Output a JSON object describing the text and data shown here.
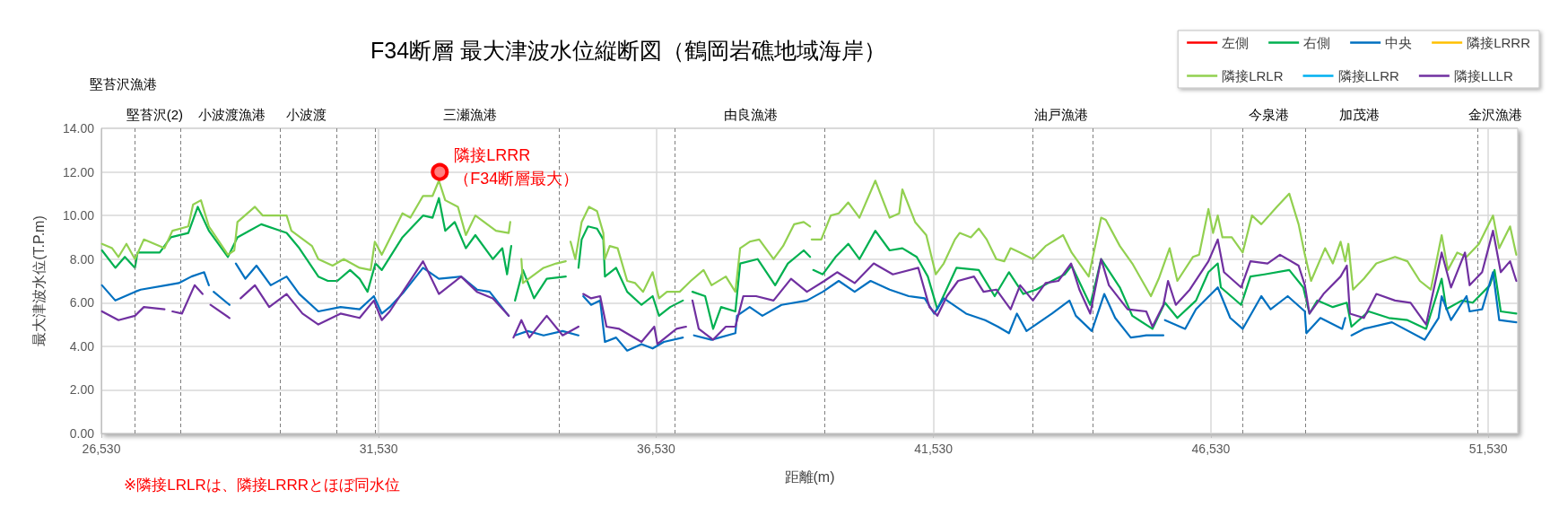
{
  "chart_data": {
    "type": "line",
    "title": "F34断層 最大津波水位縦断図（鶴岡岩礁地域海岸）",
    "xlabel": "距離(m)",
    "ylabel": "最大津波水位(T.P.m)",
    "xlim": [
      26530,
      52060
    ],
    "xticks": [
      {
        "value": 26530,
        "label": "26,530"
      },
      {
        "value": 31530,
        "label": "31,530"
      },
      {
        "value": 36530,
        "label": "36,530"
      },
      {
        "value": 41530,
        "label": "41,530"
      },
      {
        "value": 46530,
        "label": "46,530"
      },
      {
        "value": 51530,
        "label": "51,530"
      }
    ],
    "ylim": [
      0,
      14
    ],
    "yticks": [
      {
        "value": 0,
        "label": "0.00"
      },
      {
        "value": 2,
        "label": "2.00"
      },
      {
        "value": 4,
        "label": "4.00"
      },
      {
        "value": 6,
        "label": "6.00"
      },
      {
        "value": 8,
        "label": "8.00"
      },
      {
        "value": 10,
        "label": "10.00"
      },
      {
        "value": 12,
        "label": "12.00"
      },
      {
        "value": 14,
        "label": "14.00"
      }
    ],
    "grid": true,
    "legend": "top right",
    "marker": "none",
    "ref_lines": [
      {
        "axis": "x",
        "value": 27139,
        "label": null,
        "line_style": "dashed",
        "color": "#7f7f7f"
      },
      {
        "axis": "x",
        "value": 27951,
        "label": null,
        "line_style": "dashed",
        "color": "#7f7f7f"
      },
      {
        "axis": "x",
        "value": 29754,
        "label": null,
        "line_style": "dashed",
        "color": "#7f7f7f"
      },
      {
        "axis": "x",
        "value": 30767,
        "label": null,
        "line_style": "dashed",
        "color": "#7f7f7f"
      },
      {
        "axis": "x",
        "value": 31466,
        "label": null,
        "line_style": "dashed",
        "color": "#7f7f7f"
      },
      {
        "axis": "x",
        "value": 34785,
        "label": null,
        "line_style": "dashed",
        "color": "#7f7f7f"
      },
      {
        "axis": "x",
        "value": 36863,
        "label": null,
        "line_style": "dashed",
        "color": "#7f7f7f"
      },
      {
        "axis": "x",
        "value": 39559,
        "label": null,
        "line_style": "dashed",
        "color": "#7f7f7f"
      },
      {
        "axis": "x",
        "value": 43314,
        "label": null,
        "line_style": "dashed",
        "color": "#7f7f7f"
      },
      {
        "axis": "x",
        "value": 44395,
        "label": null,
        "line_style": "dashed",
        "color": "#7f7f7f"
      },
      {
        "axis": "x",
        "value": 47102,
        "label": null,
        "line_style": "dashed",
        "color": "#7f7f7f"
      },
      {
        "axis": "x",
        "value": 48229,
        "label": null,
        "line_style": "dashed",
        "color": "#7f7f7f"
      },
      {
        "axis": "x",
        "value": 51344,
        "label": null,
        "line_style": "dashed",
        "color": "#7f7f7f"
      }
    ],
    "annotations": [
      "堅苔沢漁港",
      "堅苔沢(2)",
      "小波渡漁港",
      "小波渡",
      "三瀬漁港",
      "由良漁港",
      "油戸漁港",
      "今泉港",
      "加茂港",
      "金沢漁港",
      {
        "text": "隣接LRRR\n（F34断層最大）",
        "x": 32630,
        "y": 12.0
      },
      "※隣接LRLRは、隣接LRRRとほぼ同水位"
    ],
    "series": [
      {
        "name": "左側",
        "color": "#ff0000"
      },
      {
        "name": "右側",
        "color": "#00b050",
        "x": [
          26541,
          26782,
          26953,
          27136,
          27182,
          27582,
          27782,
          28097,
          28268,
          28468,
          28811,
          28983,
          29412,
          29869,
          30098,
          30441,
          30613,
          30784,
          31013,
          31185,
          31328,
          31470,
          31585,
          31957,
          32328,
          32500,
          32614,
          32728,
          32900,
          33100,
          33271,
          33586,
          33757,
          33843,
          33918,
          33950,
          33986,
          34129,
          34329,
          34558,
          34901,
          34950,
          35130,
          35187,
          35301,
          35464,
          35578,
          35607,
          35808,
          36008,
          36266,
          36467,
          36582,
          36783,
          37012,
          37100,
          37184,
          37413,
          37557,
          37700,
          37958,
          38044,
          38359,
          38675,
          38904,
          39190,
          39305,
          39330,
          39362,
          39534,
          39764,
          39993,
          40194,
          40481,
          40739,
          40968,
          41226,
          41427,
          41599,
          41943,
          42345,
          42632,
          42890,
          43148,
          43378,
          43665,
          43894,
          44019,
          44355,
          44551,
          44888,
          45112,
          45476,
          45701,
          45925,
          46261,
          46485,
          46653,
          46709,
          47074,
          47242,
          47494,
          47942,
          48194,
          48306,
          48447,
          48727,
          48979,
          49063,
          49371,
          49736,
          50072,
          50409,
          50689,
          50773,
          51053,
          51249,
          51558,
          51642,
          51754,
          52034
        ],
        "values": [
          8.4,
          7.6,
          8.1,
          7.6,
          8.3,
          8.3,
          9.0,
          9.2,
          10.4,
          9.3,
          8.1,
          9.0,
          9.6,
          9.2,
          8.5,
          7.2,
          7.0,
          7.0,
          7.5,
          7.1,
          6.5,
          7.8,
          7.5,
          9.0,
          10.0,
          9.9,
          10.8,
          9.3,
          9.7,
          8.5,
          9.1,
          8.0,
          8.5,
          7.3,
          8.6,
          null,
          6.1,
          7.5,
          6.2,
          7.1,
          7.2,
          null,
          7.6,
          8.9,
          9.5,
          9.4,
          8.9,
          7.2,
          7.6,
          6.5,
          5.9,
          6.3,
          5.4,
          5.8,
          6.1,
          null,
          6.5,
          6.3,
          4.8,
          5.8,
          5.6,
          7.8,
          8.0,
          6.8,
          7.8,
          8.4,
          8.1,
          null,
          7.5,
          7.3,
          8.1,
          8.7,
          8.0,
          9.3,
          8.4,
          8.5,
          8.1,
          7.2,
          5.7,
          7.6,
          7.5,
          6.3,
          7.4,
          6.4,
          6.6,
          7.0,
          7.3,
          7.7,
          5.9,
          8.0,
          6.7,
          5.4,
          4.8,
          6.0,
          5.3,
          6.1,
          7.4,
          7.8,
          6.7,
          5.9,
          7.2,
          7.3,
          7.5,
          6.7,
          5.5,
          6.1,
          5.8,
          6.0,
          4.9,
          5.6,
          5.3,
          5.2,
          4.8,
          7.1,
          5.7,
          6.1,
          6.0,
          6.8,
          7.5,
          5.6,
          5.5
        ]
      },
      {
        "name": "中央",
        "color": "#0070c0",
        "x": [
          26541,
          26782,
          27136,
          27239,
          27696,
          27925,
          28154,
          28383,
          28468,
          28500,
          28554,
          28840,
          28900,
          28954,
          29126,
          29326,
          29583,
          29869,
          30098,
          30441,
          30841,
          31185,
          31442,
          31585,
          31728,
          31985,
          32328,
          32614,
          33014,
          33300,
          33529,
          33872,
          33950,
          33986,
          34215,
          34501,
          34844,
          35130,
          35160,
          35216,
          35358,
          35521,
          35607,
          35808,
          36008,
          36266,
          36467,
          36668,
          37012,
          37100,
          37212,
          37528,
          37958,
          37987,
          38216,
          38445,
          38789,
          39248,
          39534,
          39821,
          40108,
          40395,
          40739,
          41083,
          41370,
          41542,
          41714,
          42116,
          42460,
          42690,
          42890,
          43033,
          43206,
          43435,
          43665,
          43980,
          44095,
          44383,
          44607,
          44804,
          45084,
          45364,
          45673,
          45690,
          45701,
          46065,
          46261,
          46653,
          46878,
          47102,
          47438,
          47606,
          47914,
          48223,
          48251,
          48503,
          48895,
          48951,
          49000,
          49063,
          49287,
          49792,
          50381,
          50633,
          50689,
          50857,
          51137,
          51193,
          51418,
          51614,
          51726,
          52034
        ],
        "values": [
          6.8,
          6.1,
          6.5,
          6.6,
          6.8,
          6.9,
          7.2,
          7.4,
          6.8,
          null,
          6.5,
          5.9,
          null,
          7.8,
          7.1,
          7.7,
          6.8,
          7.2,
          6.4,
          5.6,
          5.8,
          5.7,
          6.3,
          5.5,
          5.8,
          6.5,
          7.6,
          7.1,
          7.2,
          6.6,
          6.5,
          5.4,
          null,
          4.5,
          4.7,
          4.5,
          4.7,
          4.5,
          null,
          6.3,
          5.9,
          6.1,
          4.2,
          4.4,
          3.8,
          4.1,
          3.9,
          4.2,
          4.4,
          null,
          4.5,
          4.3,
          4.6,
          5.4,
          5.8,
          5.4,
          5.9,
          6.1,
          6.5,
          7.0,
          6.5,
          7.0,
          6.6,
          6.3,
          6.2,
          5.5,
          6.2,
          5.5,
          5.2,
          4.9,
          4.6,
          5.5,
          4.7,
          5.1,
          5.5,
          6.1,
          5.4,
          4.7,
          6.4,
          5.3,
          4.4,
          4.5,
          4.5,
          null,
          5.2,
          4.8,
          5.7,
          6.7,
          5.3,
          4.8,
          6.3,
          5.7,
          6.3,
          5.6,
          4.6,
          5.3,
          4.8,
          5.3,
          null,
          4.5,
          4.8,
          5.1,
          4.3,
          5.3,
          6.3,
          5.2,
          6.3,
          5.6,
          5.7,
          7.4,
          5.2,
          5.1
        ]
      },
      {
        "name": "隣接LRRR",
        "color": "#ffc000"
      },
      {
        "name": "隣接LRLR",
        "color": "#92d050",
        "x": [
          26541,
          26724,
          26839,
          26982,
          27136,
          27296,
          27668,
          27811,
          28097,
          28183,
          28325,
          28468,
          28811,
          28926,
          28983,
          29298,
          29440,
          29869,
          29955,
          30327,
          30441,
          30698,
          30899,
          31185,
          31385,
          31459,
          31585,
          31957,
          32100,
          32328,
          32500,
          32614,
          32728,
          32957,
          33100,
          33271,
          33643,
          33872,
          33900,
          33990,
          34101,
          34129,
          34501,
          34730,
          34901,
          34950,
          34987,
          35073,
          35187,
          35320,
          35464,
          35578,
          35607,
          35693,
          35836,
          36008,
          36152,
          36295,
          36467,
          36582,
          36725,
          36954,
          37155,
          37384,
          37528,
          37786,
          37958,
          38044,
          38216,
          38388,
          38646,
          38818,
          39018,
          39190,
          39305,
          39320,
          39333,
          39506,
          39678,
          39821,
          39993,
          40194,
          40481,
          40739,
          40911,
          40968,
          41198,
          41399,
          41571,
          41714,
          41915,
          42001,
          42202,
          42345,
          42489,
          42661,
          42804,
          42919,
          43091,
          43321,
          43550,
          43865,
          44019,
          44327,
          44551,
          44635,
          44888,
          45112,
          45448,
          45589,
          45785,
          45925,
          46205,
          46317,
          46485,
          46569,
          46653,
          46737,
          46906,
          47102,
          47270,
          47438,
          47718,
          47942,
          48110,
          48223,
          48335,
          48587,
          48727,
          48867,
          48951,
          49007,
          49091,
          49287,
          49512,
          49848,
          50072,
          50296,
          50493,
          50689,
          50801,
          50969,
          51137,
          51362,
          51614,
          51726,
          51922,
          52034
        ],
        "values": [
          8.7,
          8.5,
          8.1,
          8.7,
          8.0,
          8.9,
          8.5,
          9.3,
          9.5,
          10.5,
          10.7,
          9.5,
          8.2,
          8.4,
          9.7,
          10.4,
          10.0,
          10.0,
          9.3,
          8.6,
          8.0,
          7.7,
          8.0,
          7.6,
          7.5,
          8.8,
          8.2,
          10.1,
          9.9,
          10.9,
          10.9,
          11.6,
          10.7,
          10.4,
          9.1,
          10.0,
          9.3,
          9.2,
          9.7,
          null,
          8.0,
          6.9,
          7.6,
          7.8,
          7.9,
          null,
          8.8,
          8.0,
          9.7,
          10.4,
          10.2,
          9.2,
          8.0,
          8.6,
          8.5,
          7.0,
          6.9,
          6.5,
          7.4,
          6.2,
          6.5,
          6.5,
          7.0,
          7.5,
          6.8,
          7.2,
          6.5,
          8.5,
          8.8,
          8.9,
          8.0,
          8.6,
          9.6,
          9.7,
          9.5,
          null,
          8.9,
          8.9,
          10.0,
          10.1,
          10.6,
          9.9,
          11.6,
          9.9,
          10.1,
          11.2,
          9.7,
          9.1,
          7.3,
          7.8,
          8.9,
          9.2,
          9.0,
          9.4,
          8.9,
          8.0,
          7.9,
          8.5,
          8.3,
          8.0,
          8.6,
          9.1,
          8.3,
          7.2,
          9.9,
          9.8,
          8.6,
          7.8,
          6.3,
          7.1,
          8.5,
          7.0,
          8.1,
          8.2,
          10.3,
          9.2,
          10.0,
          9.0,
          9.0,
          8.3,
          10.0,
          9.6,
          10.4,
          11.0,
          9.6,
          8.2,
          7.0,
          8.5,
          7.8,
          8.8,
          7.9,
          8.7,
          6.6,
          7.1,
          7.8,
          8.1,
          7.9,
          7.0,
          6.6,
          9.1,
          7.5,
          8.3,
          8.1,
          8.7,
          10.0,
          8.5,
          9.5,
          8.2
        ]
      },
      {
        "name": "隣接LLRR",
        "color": "#00b0f0"
      },
      {
        "name": "隣接LLLR",
        "color": "#7030a0",
        "x": [
          26541,
          26839,
          27136,
          27296,
          27668,
          27750,
          27811,
          27982,
          28211,
          28354,
          28420,
          28497,
          28840,
          28900,
          29040,
          29298,
          29555,
          29869,
          30155,
          30441,
          30841,
          31185,
          31442,
          31585,
          31728,
          32328,
          32614,
          33014,
          33300,
          33586,
          33872,
          33930,
          33958,
          34101,
          34244,
          34558,
          34844,
          35130,
          35160,
          35216,
          35358,
          35521,
          35635,
          35865,
          36266,
          36496,
          36553,
          36897,
          37069,
          37120,
          37184,
          37298,
          37557,
          37786,
          37958,
          38101,
          38331,
          38646,
          38961,
          39248,
          39563,
          39793,
          40108,
          40452,
          40797,
          41255,
          41456,
          41599,
          41772,
          41972,
          42259,
          42431,
          42661,
          42919,
          43091,
          43321,
          43550,
          43780,
          44009,
          44159,
          44355,
          44551,
          44691,
          45028,
          45364,
          45476,
          45673,
          45757,
          45897,
          46149,
          46485,
          46653,
          46765,
          47074,
          47242,
          47550,
          47774,
          48110,
          48223,
          48306,
          48559,
          48867,
          48979,
          49035,
          49287,
          49512,
          49848,
          50128,
          50409,
          50689,
          50857,
          51109,
          51193,
          51418,
          51614,
          51754,
          51922,
          52034
        ],
        "values": [
          5.6,
          5.2,
          5.4,
          5.8,
          5.7,
          null,
          5.6,
          5.5,
          6.8,
          6.4,
          null,
          5.9,
          5.3,
          null,
          6.2,
          6.8,
          5.8,
          6.4,
          5.5,
          5.0,
          5.5,
          5.3,
          6.1,
          5.2,
          5.6,
          7.9,
          6.4,
          7.2,
          6.5,
          6.2,
          5.4,
          null,
          4.4,
          5.2,
          4.4,
          5.4,
          4.5,
          4.9,
          null,
          6.4,
          6.2,
          6.3,
          4.9,
          4.8,
          4.2,
          4.9,
          4.1,
          4.8,
          4.9,
          null,
          6.1,
          4.8,
          4.3,
          4.9,
          4.9,
          6.3,
          6.3,
          6.1,
          7.1,
          6.5,
          7.0,
          7.4,
          6.9,
          7.8,
          7.3,
          7.6,
          5.8,
          5.4,
          6.3,
          7.0,
          7.2,
          6.5,
          6.6,
          5.7,
          6.8,
          6.1,
          6.9,
          7.0,
          7.8,
          6.6,
          5.5,
          8.0,
          6.8,
          5.7,
          5.6,
          4.9,
          5.9,
          7.0,
          5.9,
          6.6,
          7.9,
          8.9,
          7.4,
          6.7,
          7.9,
          7.8,
          8.2,
          7.7,
          6.8,
          5.5,
          6.4,
          7.2,
          7.7,
          5.5,
          5.3,
          6.4,
          6.1,
          6.0,
          5.0,
          8.3,
          6.7,
          8.3,
          6.8,
          7.4,
          9.3,
          7.4,
          7.9,
          7.0
        ]
      }
    ]
  }
}
